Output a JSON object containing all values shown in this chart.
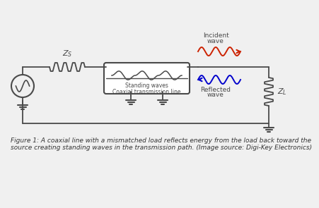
{
  "bg_color": "#f0f0f0",
  "line_color": "#4a4a4a",
  "red_color": "#cc2200",
  "blue_color": "#0000cc",
  "fig_caption": "Figure 1: A coaxial line with a mismatched load reflects energy from the load back toward the\nsource creating standing waves in the transmission path. (Image source: Digi-Key Electronics)",
  "caption_fontsize": 6.5
}
